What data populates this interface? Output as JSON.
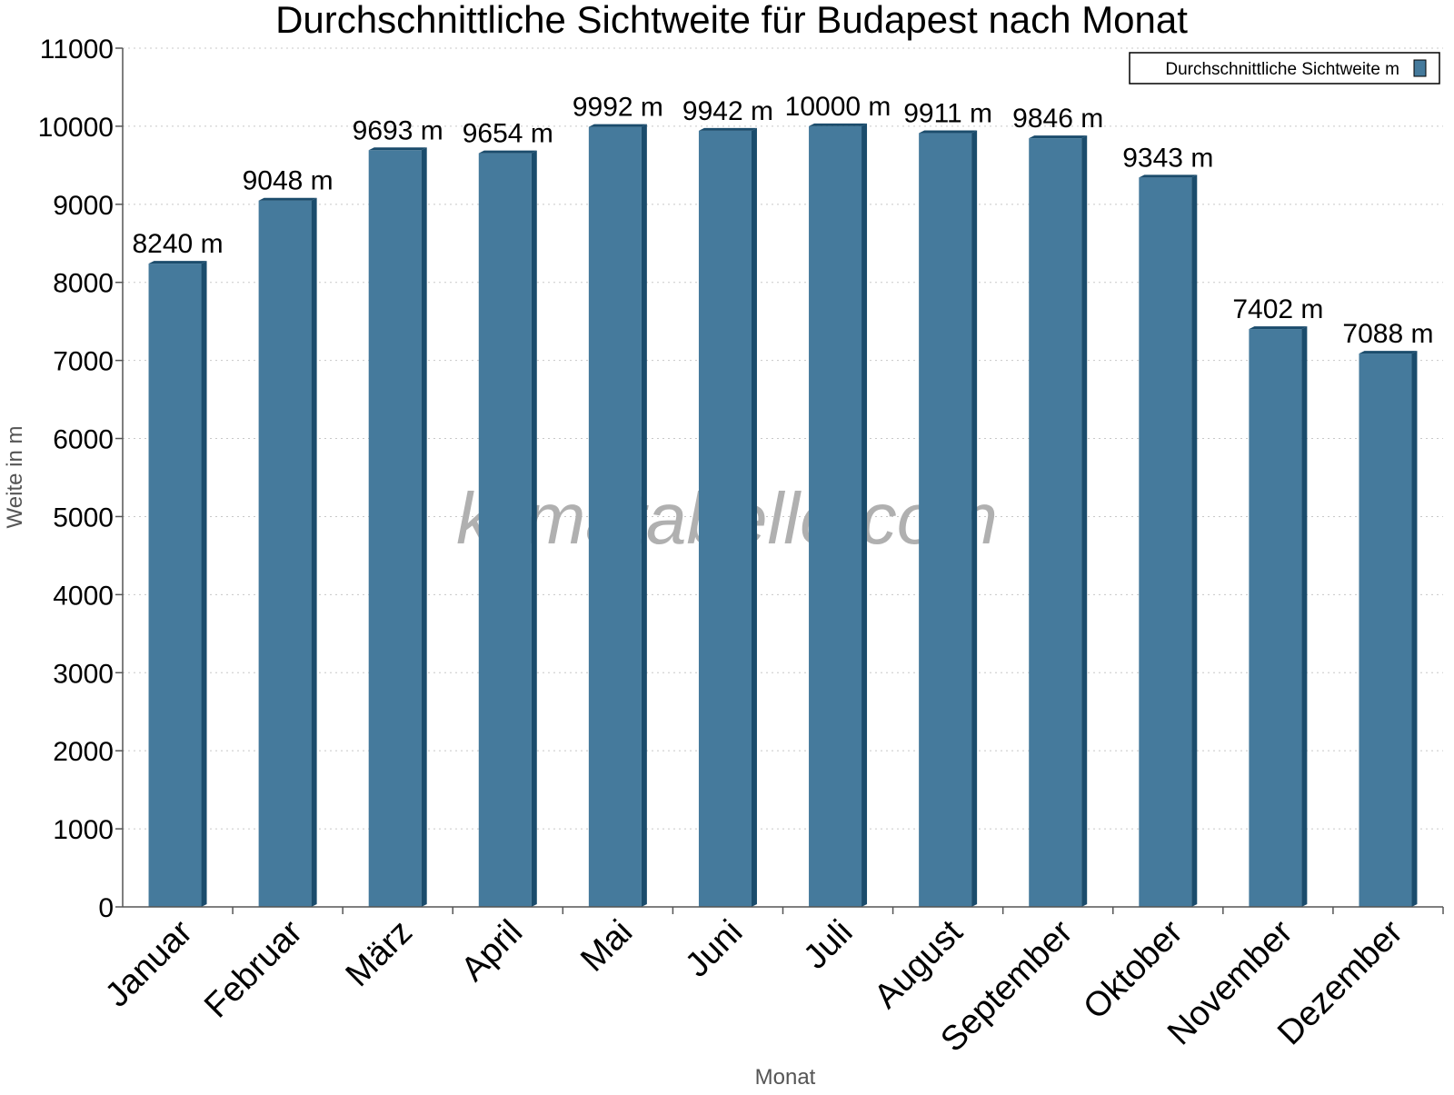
{
  "chart_data": {
    "type": "bar",
    "title": "Durchschnittliche Sichtweite für Budapest nach Monat",
    "xlabel": "Monat",
    "ylabel": "Weite in m",
    "categories": [
      "Januar",
      "Februar",
      "März",
      "April",
      "Mai",
      "Juni",
      "Juli",
      "August",
      "September",
      "Oktober",
      "November",
      "Dezember"
    ],
    "series": [
      {
        "name": "Durchschnittliche Sichtweite m",
        "values": [
          8240,
          9048,
          9693,
          9654,
          9992,
          9942,
          10000,
          9911,
          9846,
          9343,
          7402,
          7088
        ],
        "value_labels": [
          "8240 m",
          "9048 m",
          "9693 m",
          "9654 m",
          "9992 m",
          "9942 m",
          "10000 m",
          "9911 m",
          "9846 m",
          "9343 m",
          "7402 m",
          "7088 m"
        ],
        "color": "#457a9c",
        "shade_color": "#1b4c6c"
      }
    ],
    "ylim": [
      0,
      11000
    ],
    "yticks": [
      0,
      1000,
      2000,
      3000,
      4000,
      5000,
      6000,
      7000,
      8000,
      9000,
      10000,
      11000
    ],
    "grid": true,
    "legend_position": "top-right",
    "watermark": "klimatabelle.com"
  }
}
